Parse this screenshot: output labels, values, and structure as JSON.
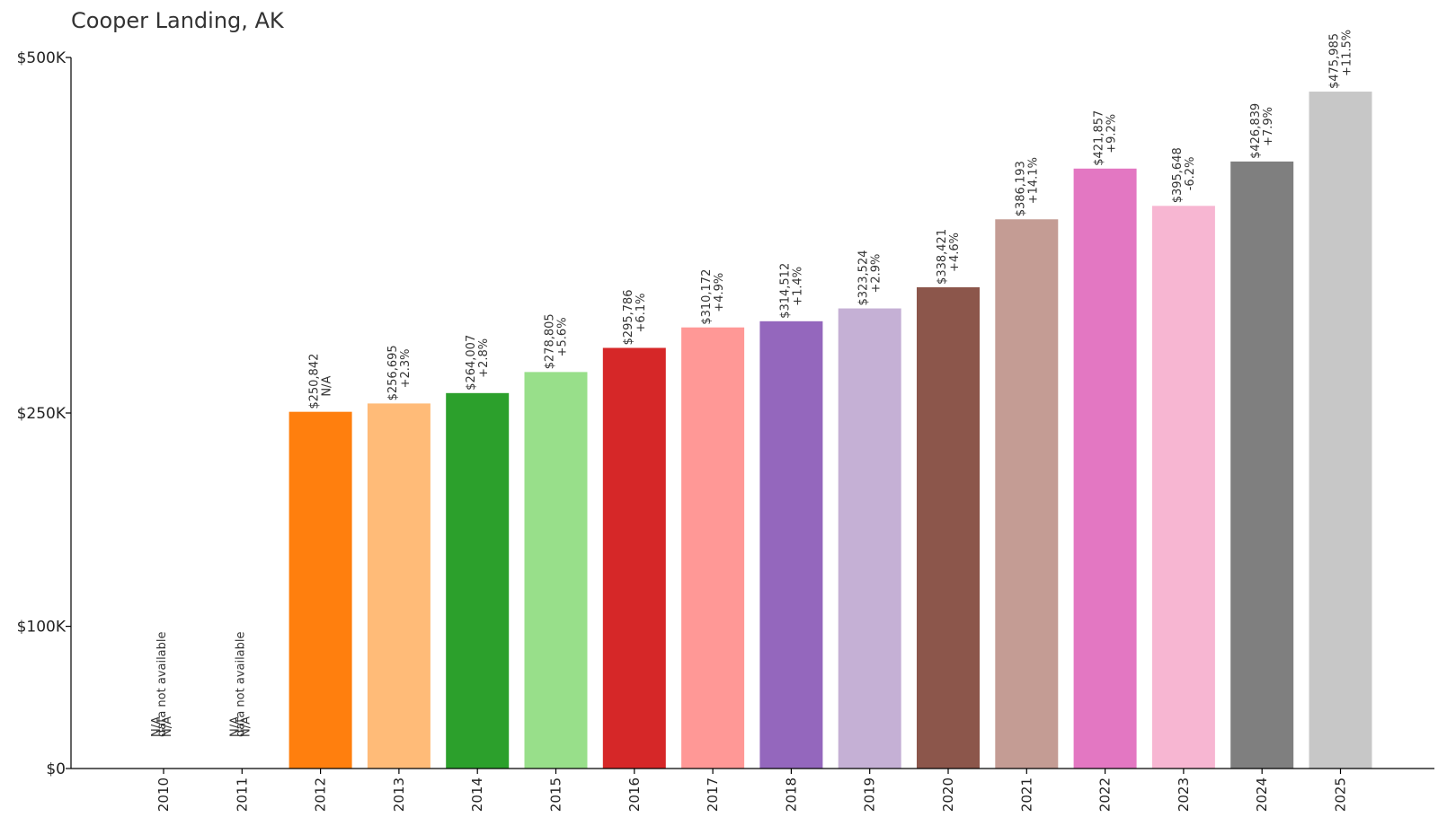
{
  "chart_data": {
    "type": "bar",
    "title": "Cooper Landing, AK",
    "xlabel": "",
    "ylabel": "",
    "ylim": [
      0,
      500000
    ],
    "y_ticks": [
      {
        "value": 0,
        "label": "$0"
      },
      {
        "value": 100000,
        "label": "$100K"
      },
      {
        "value": 250000,
        "label": "$250K"
      },
      {
        "value": 500000,
        "label": "$500K"
      }
    ],
    "categories": [
      "2010",
      "2011",
      "2012",
      "2013",
      "2014",
      "2015",
      "2016",
      "2017",
      "2018",
      "2019",
      "2020",
      "2021",
      "2022",
      "2023",
      "2024",
      "2025"
    ],
    "values": [
      null,
      null,
      250842,
      256695,
      264007,
      278805,
      295786,
      310172,
      314512,
      323524,
      338421,
      386193,
      421857,
      395648,
      426839,
      475985
    ],
    "value_labels": [
      "N/A",
      "N/A",
      "$250,842",
      "$256,695",
      "$264,007",
      "$278,805",
      "$295,786",
      "$310,172",
      "$314,512",
      "$323,524",
      "$338,421",
      "$386,193",
      "$421,857",
      "$395,648",
      "$426,839",
      "$475,985"
    ],
    "change_labels": [
      "N/A",
      "N/A",
      "N/A",
      "+2.3%",
      "+2.8%",
      "+5.6%",
      "+6.1%",
      "+4.9%",
      "+1.4%",
      "+2.9%",
      "+4.6%",
      "+14.1%",
      "+9.2%",
      "-6.2%",
      "+7.9%",
      "+11.5%"
    ],
    "missing_note": "data not available",
    "colors": [
      "#1f77b4",
      "#aec7e8",
      "#ff7f0e",
      "#ffbb78",
      "#2ca02c",
      "#98df8a",
      "#d62728",
      "#ff9896",
      "#9467bd",
      "#c5b0d5",
      "#8c564b",
      "#c49c94",
      "#e377c2",
      "#f7b6d2",
      "#7f7f7f",
      "#c7c7c7"
    ]
  }
}
